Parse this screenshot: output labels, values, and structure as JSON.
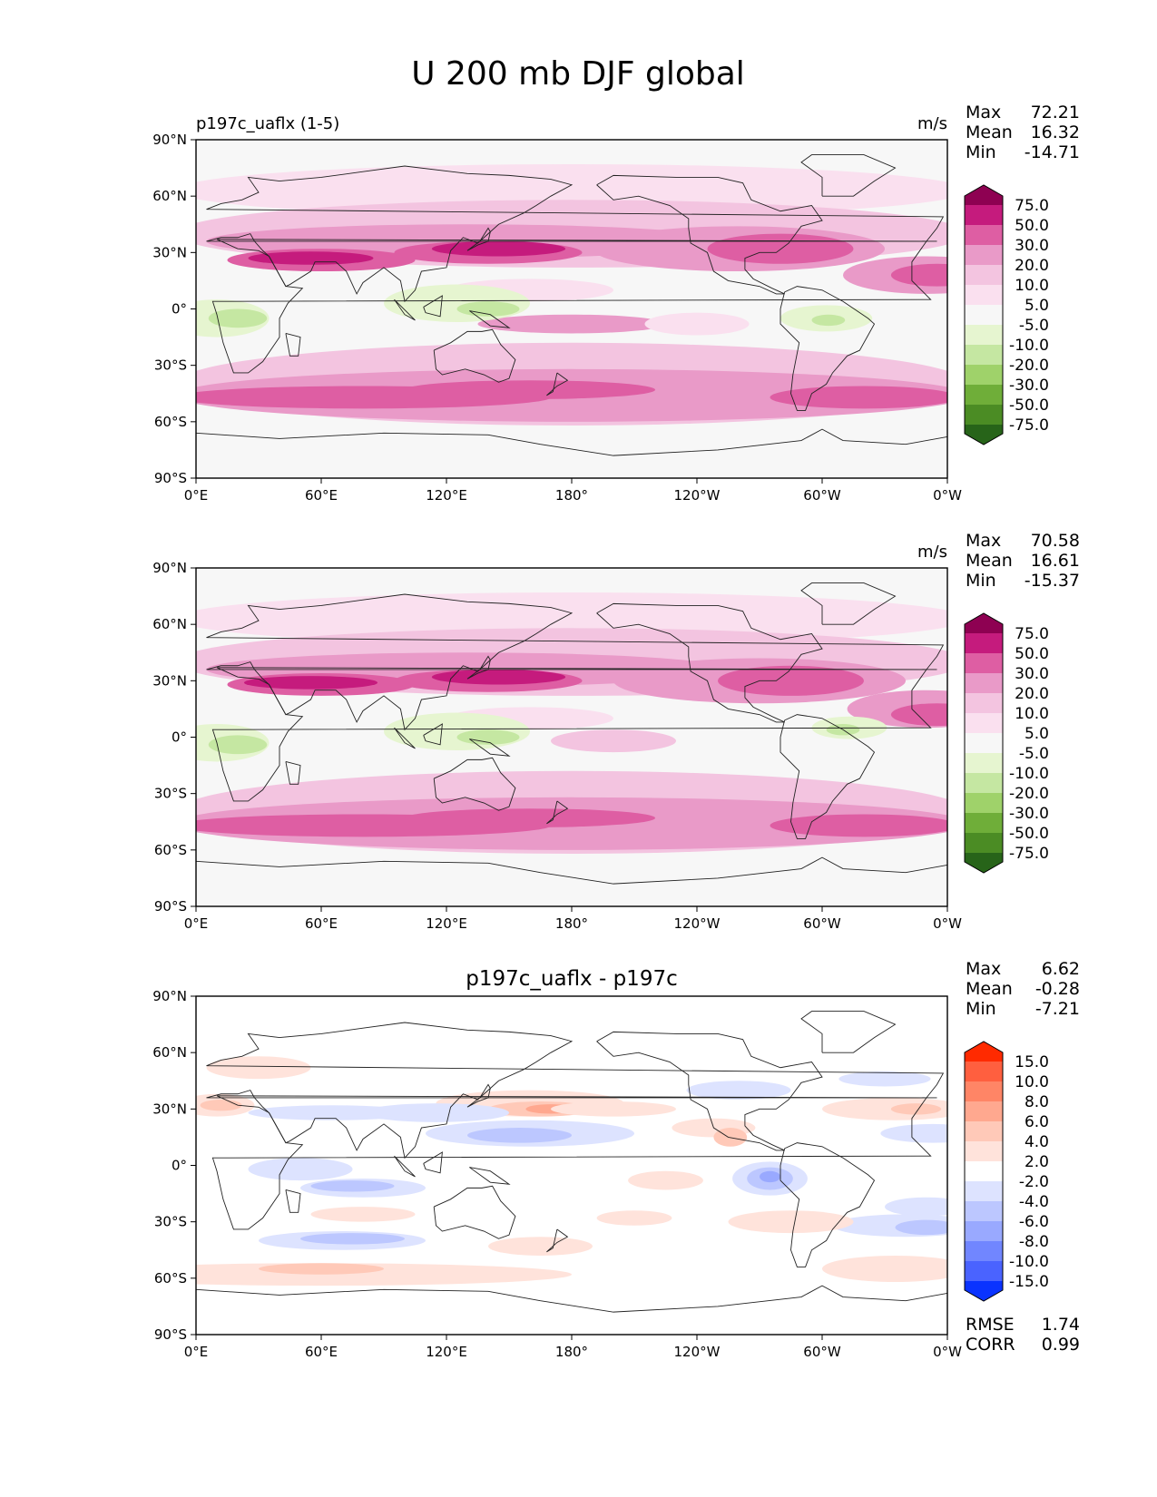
{
  "figure_title": "U 200 mb DJF global",
  "chart_data": [
    {
      "type": "contour-map",
      "panel_title_left": "p197c_uaflx (1-5)",
      "panel_title_center": "",
      "units": "m/s",
      "stats": [
        {
          "label": "Max",
          "value": "72.21"
        },
        {
          "label": "Mean",
          "value": "16.32"
        },
        {
          "label": "Min",
          "value": "-14.71"
        }
      ],
      "x_ticks": [
        "0°E",
        "60°E",
        "120°E",
        "180°",
        "120°W",
        "60°W",
        "0°W"
      ],
      "y_ticks": [
        "90°N",
        "60°N",
        "30°N",
        "0°",
        "30°S",
        "60°S",
        "90°S"
      ],
      "colorbar": {
        "levels": [
          "75.0",
          "50.0",
          "30.0",
          "20.0",
          "10.0",
          "5.0",
          "-5.0",
          "-10.0",
          "-20.0",
          "-30.0",
          "-50.0",
          "-75.0"
        ],
        "colors": [
          "#8e0152",
          "#c51b7d",
          "#de5ea3",
          "#e99ac8",
          "#f3c4e0",
          "#fae0ef",
          "#f7f7f7",
          "#e6f5d0",
          "#c5e7a2",
          "#9fd26a",
          "#6fae39",
          "#4b8c24",
          "#276419"
        ]
      },
      "footer_stats": []
    },
    {
      "type": "contour-map",
      "panel_title_left": "",
      "panel_title_center": "",
      "units": "m/s",
      "stats": [
        {
          "label": "Max",
          "value": "70.58"
        },
        {
          "label": "Mean",
          "value": "16.61"
        },
        {
          "label": "Min",
          "value": "-15.37"
        }
      ],
      "x_ticks": [
        "0°E",
        "60°E",
        "120°E",
        "180°",
        "120°W",
        "60°W",
        "0°W"
      ],
      "y_ticks": [
        "90°N",
        "60°N",
        "30°N",
        "0°",
        "30°S",
        "60°S",
        "90°S"
      ],
      "colorbar": {
        "levels": [
          "75.0",
          "50.0",
          "30.0",
          "20.0",
          "10.0",
          "5.0",
          "-5.0",
          "-10.0",
          "-20.0",
          "-30.0",
          "-50.0",
          "-75.0"
        ],
        "colors": [
          "#8e0152",
          "#c51b7d",
          "#de5ea3",
          "#e99ac8",
          "#f3c4e0",
          "#fae0ef",
          "#f7f7f7",
          "#e6f5d0",
          "#c5e7a2",
          "#9fd26a",
          "#6fae39",
          "#4b8c24",
          "#276419"
        ]
      },
      "footer_stats": []
    },
    {
      "type": "contour-map",
      "panel_title_left": "",
      "panel_title_center": "p197c_uaflx - p197c",
      "units": "",
      "stats": [
        {
          "label": "Max",
          "value": "6.62"
        },
        {
          "label": "Mean",
          "value": "-0.28"
        },
        {
          "label": "Min",
          "value": "-7.21"
        }
      ],
      "x_ticks": [
        "0°E",
        "60°E",
        "120°E",
        "180°",
        "120°W",
        "60°W",
        "0°W"
      ],
      "y_ticks": [
        "90°N",
        "60°N",
        "30°N",
        "0°",
        "30°S",
        "60°S",
        "90°S"
      ],
      "colorbar": {
        "levels": [
          "15.0",
          "10.0",
          "8.0",
          "6.0",
          "4.0",
          "2.0",
          "-2.0",
          "-4.0",
          "-6.0",
          "-8.0",
          "-10.0",
          "-15.0"
        ],
        "colors": [
          "#ff2a00",
          "#ff5f3f",
          "#ff8566",
          "#ffa88f",
          "#ffc9b8",
          "#ffe3db",
          "#ffffff",
          "#dde3ff",
          "#bcc7ff",
          "#99a9ff",
          "#7186ff",
          "#4a63ff",
          "#0a33ff"
        ]
      },
      "footer_stats": [
        {
          "label": "RMSE",
          "value": "1.74"
        },
        {
          "label": "CORR",
          "value": "0.99"
        }
      ]
    }
  ]
}
